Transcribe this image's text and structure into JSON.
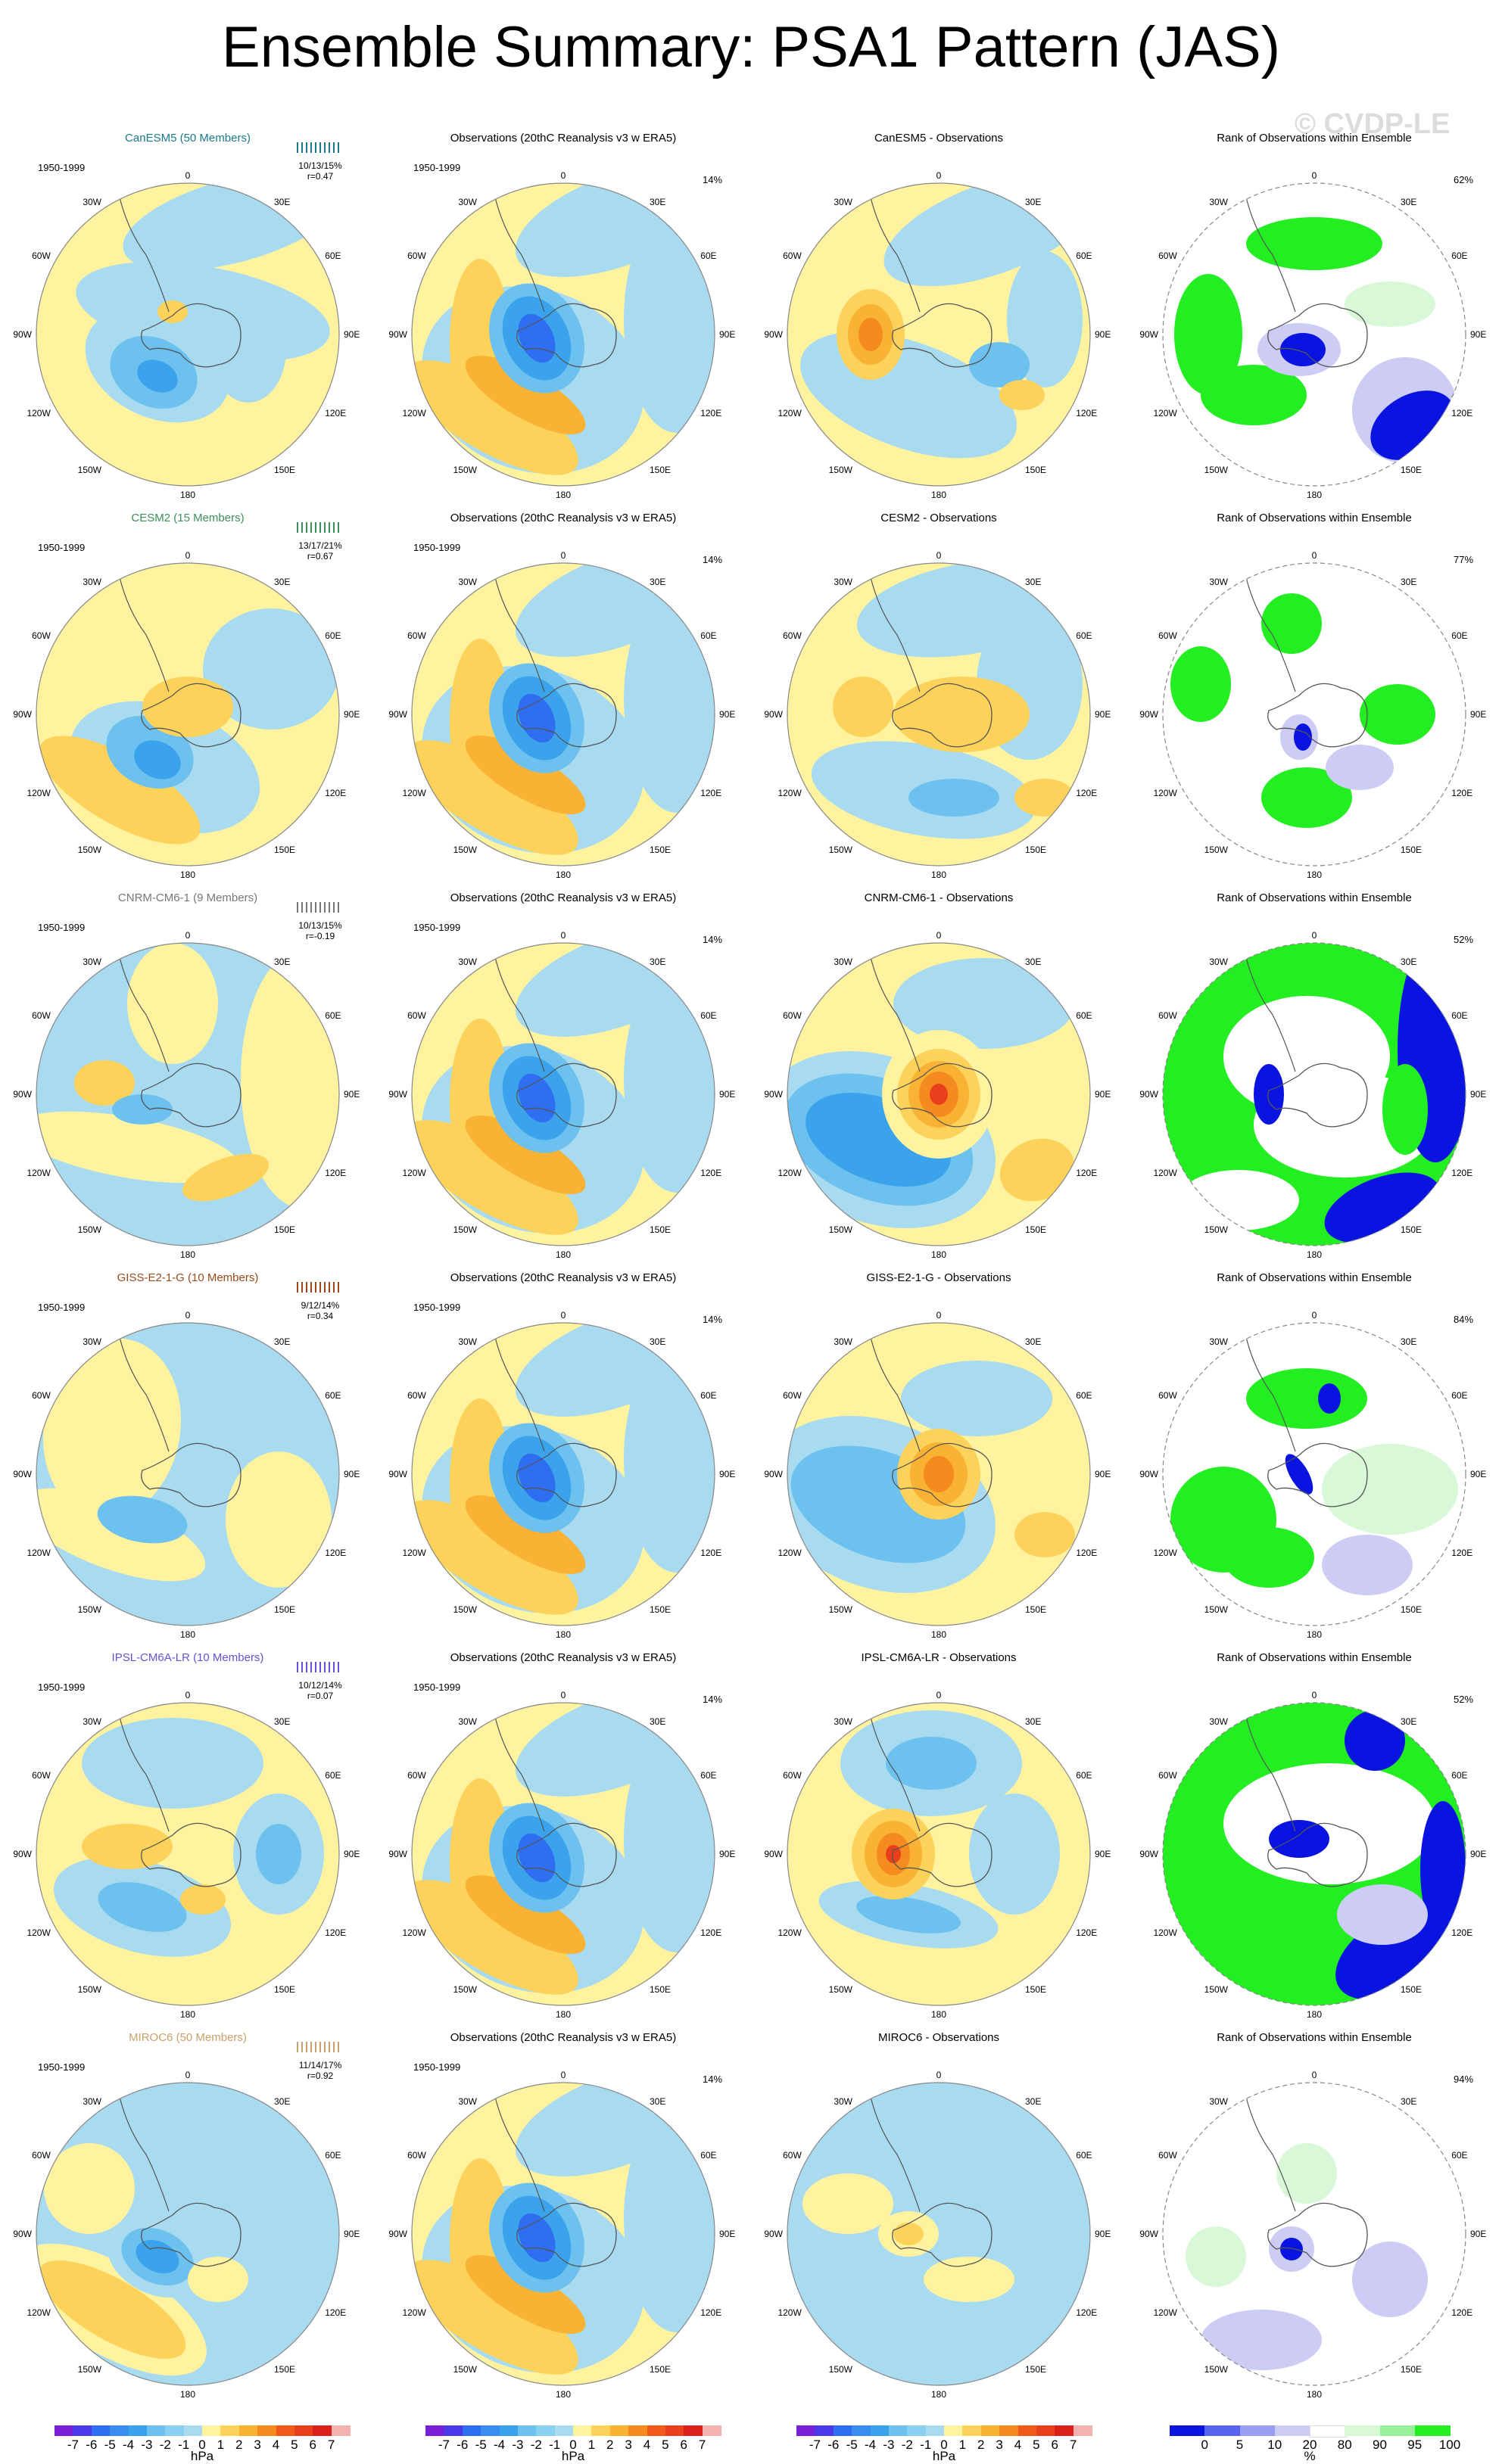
{
  "title": "Ensemble Summary: PSA1 Pattern (JAS)",
  "watermark": "© CVDP-LE",
  "map_labels": {
    "top": "0",
    "bottom": "180",
    "ul": "30W",
    "ur": "30E",
    "ml": "60W",
    "mr": "60E",
    "cl": "90W",
    "cr": "90E",
    "ll": "120W",
    "lr": "120E",
    "bl": "150W",
    "br": "150E"
  },
  "colors": {
    "light_blue": "#a8daf0",
    "yellow": "#fff3a0",
    "orange1": "#fcd25a",
    "orange2": "#f9b233",
    "orange3": "#f58a1f",
    "red1": "#e8401c",
    "blue1": "#6cc1ee",
    "blue2": "#3aa3ec",
    "blue3": "#2f6ef0",
    "rank_green": "#22ee22",
    "rank_pale_green": "#d8f8d8",
    "rank_blue": "#0a14e0",
    "rank_lavender": "#ccccf5"
  },
  "rows": [
    {
      "model": "CanESM5 (50 Members)",
      "model_color": "#1a7a8a",
      "years": "1950-1999",
      "stats": "10/13/15%",
      "r": "r=0.47",
      "obs_title": "Observations (20thC Reanalysis v3 w ERA5)",
      "obs_pct": "14%",
      "diff_title": "CanESM5 - Observations",
      "rank_title": "Rank of Observations within Ensemble",
      "rank_pct": "62%"
    },
    {
      "model": "CESM2 (15 Members)",
      "model_color": "#3d8f5a",
      "years": "1950-1999",
      "stats": "13/17/21%",
      "r": "r=0.67",
      "obs_title": "Observations (20thC Reanalysis v3 w ERA5)",
      "obs_pct": "14%",
      "diff_title": "CESM2 - Observations",
      "rank_title": "Rank of Observations within Ensemble",
      "rank_pct": "77%"
    },
    {
      "model": "CNRM-CM6-1 (9 Members)",
      "model_color": "#777777",
      "years": "1950-1999",
      "stats": "10/13/15%",
      "r": "r=-0.19",
      "obs_title": "Observations (20thC Reanalysis v3 w ERA5)",
      "obs_pct": "14%",
      "diff_title": "CNRM-CM6-1 - Observations",
      "rank_title": "Rank of Observations within Ensemble",
      "rank_pct": "52%"
    },
    {
      "model": "GISS-E2-1-G (10 Members)",
      "model_color": "#9a4a1a",
      "years": "1950-1999",
      "stats": "9/12/14%",
      "r": "r=0.34",
      "obs_title": "Observations (20thC Reanalysis v3 w ERA5)",
      "obs_pct": "14%",
      "diff_title": "GISS-E2-1-G - Observations",
      "rank_title": "Rank of Observations within Ensemble",
      "rank_pct": "84%"
    },
    {
      "model": "IPSL-CM6A-LR (10 Members)",
      "model_color": "#6a4fd8",
      "years": "1950-1999",
      "stats": "10/12/14%",
      "r": "r=0.07",
      "obs_title": "Observations (20thC Reanalysis v3 w ERA5)",
      "obs_pct": "14%",
      "diff_title": "IPSL-CM6A-LR - Observations",
      "rank_title": "Rank of Observations within Ensemble",
      "rank_pct": "52%"
    },
    {
      "model": "MIROC6 (50 Members)",
      "model_color": "#c9a06a",
      "years": "1950-1999",
      "stats": "11/14/17%",
      "r": "r=0.92",
      "obs_title": "Observations (20thC Reanalysis v3 w ERA5)",
      "obs_pct": "14%",
      "diff_title": "MIROC6 - Observations",
      "rank_title": "Rank of Observations within Ensemble",
      "rank_pct": "94%"
    }
  ],
  "colorbar_hpa": {
    "labels": [
      "-7",
      "-6",
      "-5",
      "-4",
      "-3",
      "-2",
      "-1",
      "0",
      "1",
      "2",
      "3",
      "4",
      "5",
      "6",
      "7"
    ],
    "unit": "hPa",
    "colors": [
      "#7a1fd8",
      "#4b38e8",
      "#2f6ef0",
      "#3a8cee",
      "#3aa3ec",
      "#6cc1ee",
      "#8ad0f0",
      "#a8daf0",
      "#fff3a0",
      "#fcd25a",
      "#f9b233",
      "#f58a1f",
      "#ef5a1a",
      "#e8401c",
      "#d9201c",
      "#f5b0b0"
    ]
  },
  "colorbar_pct": {
    "labels": [
      "0",
      "5",
      "10",
      "20",
      "80",
      "90",
      "95",
      "100"
    ],
    "unit": "%",
    "colors": [
      "#0a14e0",
      "#5a64ee",
      "#9a9ef2",
      "#ccccf5",
      "#ffffff",
      "#d8f8d8",
      "#9af09a",
      "#22ee22"
    ]
  },
  "chart_data": {
    "type": "heatmap",
    "title": "Ensemble Summary: PSA1 Pattern (JAS)",
    "period": "1950-1999",
    "projection": "south polar stereographic",
    "units": "hPa",
    "contour_levels": [
      -7,
      -6,
      -5,
      -4,
      -3,
      -2,
      -1,
      0,
      1,
      2,
      3,
      4,
      5,
      6,
      7
    ],
    "rank_levels_percent": [
      0,
      5,
      10,
      20,
      80,
      90,
      95,
      100
    ],
    "models": [
      {
        "name": "CanESM5",
        "members": 50,
        "stats": "10/13/15%",
        "r": 0.47,
        "rank_pct": 62
      },
      {
        "name": "CESM2",
        "members": 15,
        "stats": "13/17/21%",
        "r": 0.67,
        "rank_pct": 77
      },
      {
        "name": "CNRM-CM6-1",
        "members": 9,
        "stats": "10/13/15%",
        "r": -0.19,
        "rank_pct": 52
      },
      {
        "name": "GISS-E2-1-G",
        "members": 10,
        "stats": "9/12/14%",
        "r": 0.34,
        "rank_pct": 84
      },
      {
        "name": "IPSL-CM6A-LR",
        "members": 10,
        "stats": "10/12/14%",
        "r": 0.07,
        "rank_pct": 52
      },
      {
        "name": "MIROC6",
        "members": 50,
        "stats": "11/14/17%",
        "r": 0.92,
        "rank_pct": 94
      }
    ],
    "observations": {
      "source": "20thC Reanalysis v3 w ERA5",
      "percent": 14
    }
  }
}
